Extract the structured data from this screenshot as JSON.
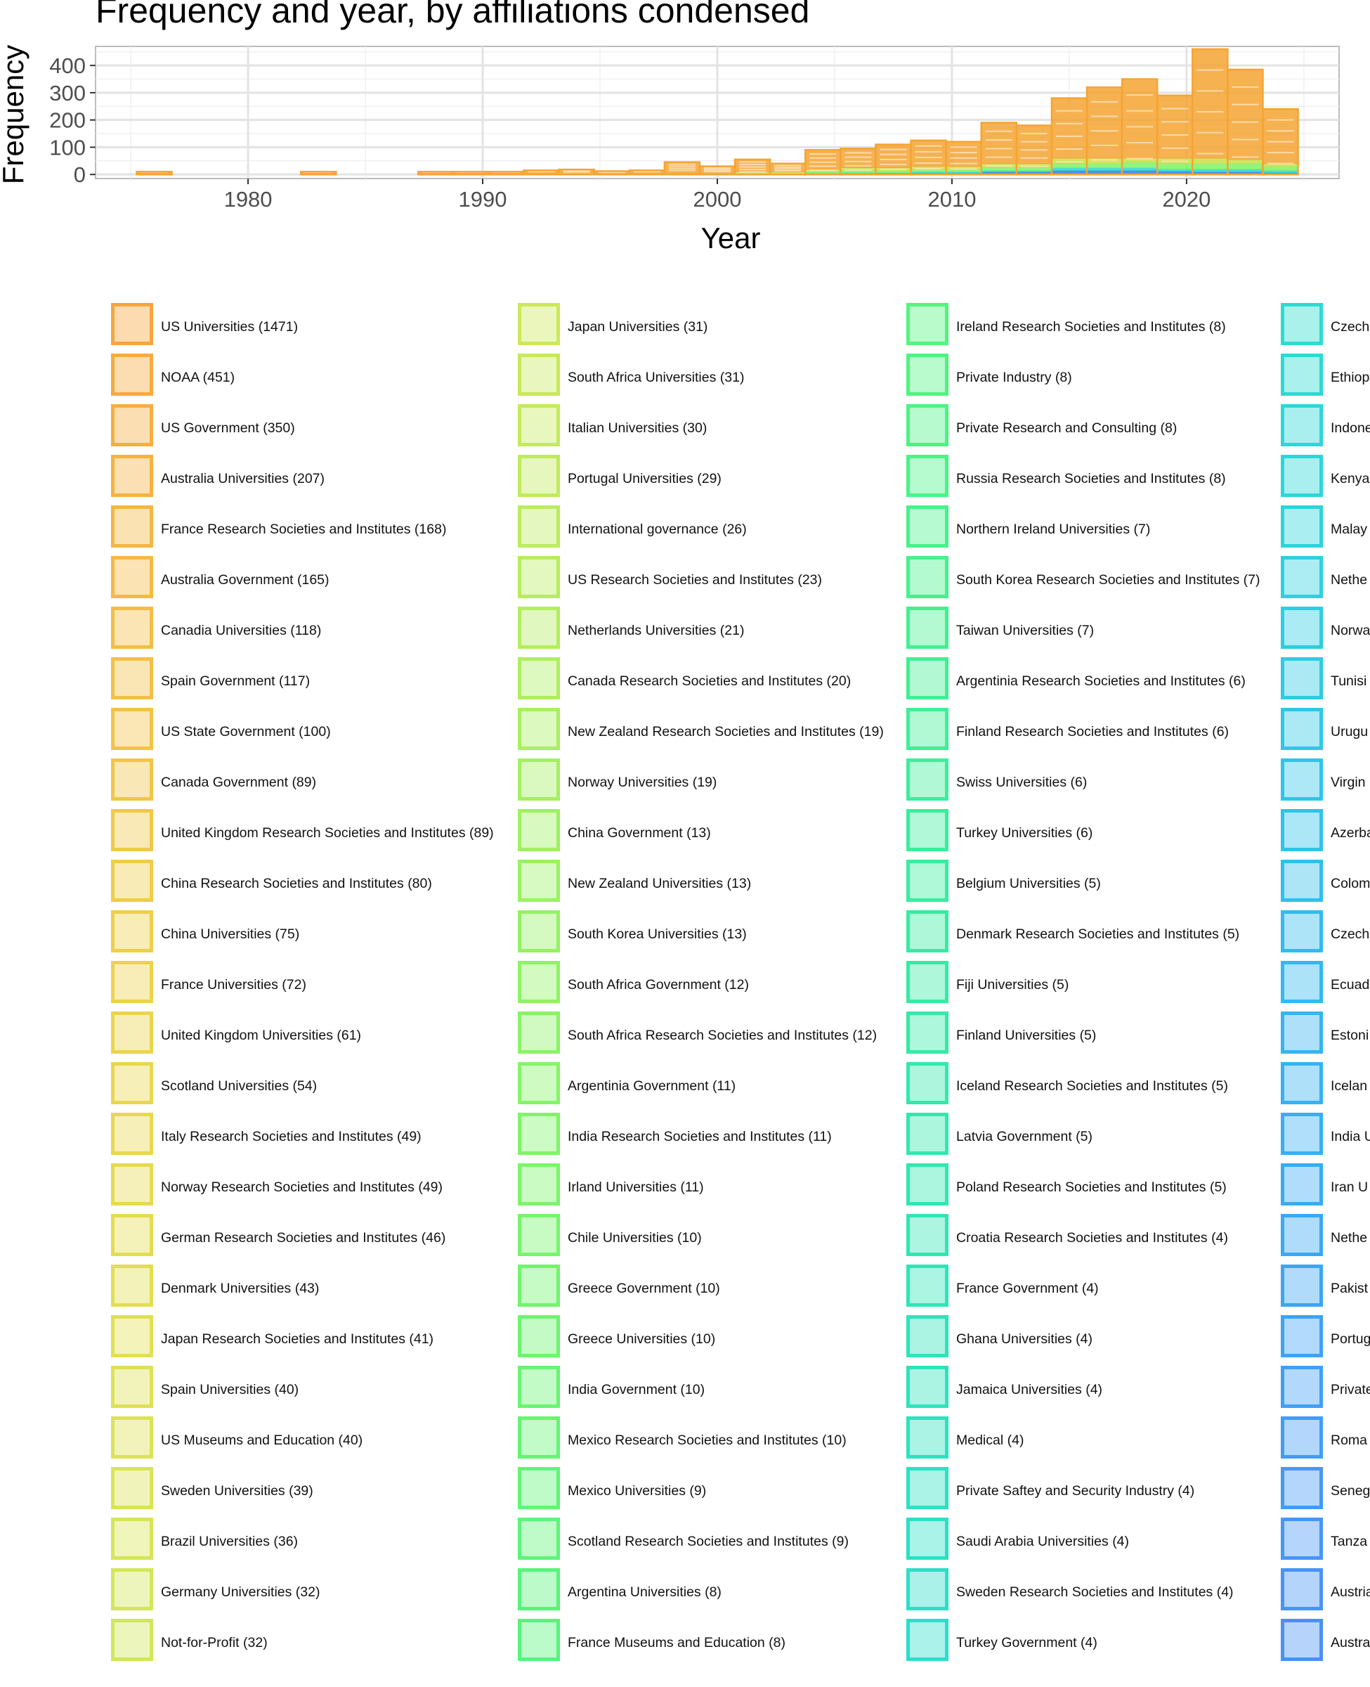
{
  "chart_data": {
    "type": "bar",
    "title": "Frequency and year, by affiliations condensed",
    "xlabel": "Year",
    "ylabel": "Frequency",
    "xlim": [
      1973.5,
      2026.5
    ],
    "ylim": [
      -15,
      470
    ],
    "xticks": [
      "1980",
      "1990",
      "2000",
      "2010",
      "2020"
    ],
    "yticks": [
      "0",
      "100",
      "200",
      "300",
      "400"
    ],
    "grid": true,
    "legend": "below",
    "stacked": true,
    "bin_width_years": 1.5,
    "years": [
      1976,
      1983,
      1988,
      1989.5,
      1991,
      1992.5,
      1994,
      1995.5,
      1997,
      1998.5,
      2000,
      2001.5,
      2003,
      2004.5,
      2006,
      2007.5,
      2009,
      2010.5,
      2012,
      2013.5,
      2015,
      2016.5,
      2018,
      2019.5,
      2021,
      2022.5,
      2024
    ],
    "totals": [
      10,
      10,
      10,
      10,
      10,
      15,
      18,
      12,
      15,
      45,
      30,
      55,
      40,
      90,
      95,
      110,
      125,
      120,
      190,
      180,
      280,
      320,
      350,
      290,
      460,
      385,
      240
    ],
    "series": [
      {
        "color": "#f5a432",
        "values": [
          10,
          10,
          10,
          10,
          10,
          10,
          12,
          10,
          10,
          40,
          25,
          45,
          30,
          70,
          70,
          85,
          95,
          90,
          150,
          140,
          220,
          260,
          290,
          230,
          400,
          330,
          200
        ]
      },
      {
        "color": "#c9e04a",
        "values": [
          0,
          0,
          0,
          0,
          0,
          5,
          6,
          2,
          5,
          5,
          5,
          8,
          7,
          10,
          10,
          10,
          12,
          12,
          15,
          15,
          20,
          20,
          15,
          20,
          20,
          15,
          10
        ]
      },
      {
        "color": "#7ff26a",
        "values": [
          0,
          0,
          0,
          0,
          0,
          0,
          0,
          0,
          0,
          0,
          0,
          2,
          3,
          5,
          8,
          8,
          8,
          8,
          10,
          10,
          15,
          15,
          20,
          20,
          20,
          20,
          15
        ]
      },
      {
        "color": "#2bd8d0",
        "values": [
          0,
          0,
          0,
          0,
          0,
          0,
          0,
          0,
          0,
          0,
          0,
          0,
          0,
          3,
          4,
          3,
          5,
          5,
          5,
          5,
          10,
          10,
          10,
          8,
          10,
          10,
          8
        ]
      },
      {
        "color": "#3b7ae0",
        "values": [
          0,
          0,
          0,
          0,
          0,
          0,
          0,
          0,
          0,
          0,
          0,
          0,
          0,
          2,
          3,
          4,
          5,
          5,
          10,
          10,
          15,
          15,
          15,
          12,
          10,
          10,
          7
        ]
      }
    ]
  },
  "legend": {
    "columns": [
      {
        "items": [
          {
            "label": "US Universities (1471)",
            "color": "#f7a53c"
          },
          {
            "label": "NOAA (451)",
            "color": "#f7aa3d"
          },
          {
            "label": "US Government (350)",
            "color": "#f6ae3f"
          },
          {
            "label": "Australia Universities (207)",
            "color": "#f6b240"
          },
          {
            "label": "France Research Societies and Institutes (168)",
            "color": "#f5b642"
          },
          {
            "label": "Australia Government (165)",
            "color": "#f5b943"
          },
          {
            "label": "Canadia Universities (118)",
            "color": "#f4bd44"
          },
          {
            "label": "Spain Government (117)",
            "color": "#f3c045"
          },
          {
            "label": "US State Government (100)",
            "color": "#f2c346"
          },
          {
            "label": "Canada Government (89)",
            "color": "#f1c647"
          },
          {
            "label": "United Kingdom Research Societies and Institutes (89)",
            "color": "#f0c948"
          },
          {
            "label": "China Research Societies and Institutes (80)",
            "color": "#efcc49"
          },
          {
            "label": "China Universities (75)",
            "color": "#eecf4a"
          },
          {
            "label": "France Universities (72)",
            "color": "#edd24b"
          },
          {
            "label": "United Kingdom Universities (61)",
            "color": "#ebd44c"
          },
          {
            "label": "Scotland Universities (54)",
            "color": "#ead64d"
          },
          {
            "label": "Italy Research Societies and Institutes (49)",
            "color": "#e8d84e"
          },
          {
            "label": "Norway Research Societies and Institutes (49)",
            "color": "#e6da4f"
          },
          {
            "label": "German Research Societies and Institutes (46)",
            "color": "#e4dc50"
          },
          {
            "label": "Denmark Universities (43)",
            "color": "#e2de51"
          },
          {
            "label": "Japan Research Societies and Institutes (41)",
            "color": "#e0e052"
          },
          {
            "label": "Spain Universities (40)",
            "color": "#dee153"
          },
          {
            "label": "US Museums and Education (40)",
            "color": "#dbe254"
          },
          {
            "label": "Sweden Universities (39)",
            "color": "#d9e455"
          },
          {
            "label": "Brazil Universities (36)",
            "color": "#d6e556"
          },
          {
            "label": "Germany Universities (32)",
            "color": "#d3e657"
          },
          {
            "label": "Not-for-Profit (32)",
            "color": "#d0e758"
          }
        ]
      },
      {
        "items": [
          {
            "label": "Japan Universities (31)",
            "color": "#cce858"
          },
          {
            "label": "South Africa Universities (31)",
            "color": "#c8e959"
          },
          {
            "label": "Italian Universities (30)",
            "color": "#c4ea5a"
          },
          {
            "label": "Portugal Universities (29)",
            "color": "#c0eb5b"
          },
          {
            "label": "International governance (26)",
            "color": "#bbec5c"
          },
          {
            "label": "US Research Societies and Institutes (23)",
            "color": "#b7ed5d"
          },
          {
            "label": "Netherlands Universities (21)",
            "color": "#b2ee5e"
          },
          {
            "label": "Canada Research Societies and Institutes (20)",
            "color": "#adef5f"
          },
          {
            "label": "New Zealand Research Societies and Institutes (19)",
            "color": "#a8f060"
          },
          {
            "label": "Norway Universities (19)",
            "color": "#a3f061"
          },
          {
            "label": "China Government (13)",
            "color": "#9ef162"
          },
          {
            "label": "New Zealand Universities (13)",
            "color": "#99f263"
          },
          {
            "label": "South Korea Universities (13)",
            "color": "#94f264"
          },
          {
            "label": "South Africa Government (12)",
            "color": "#8ff365"
          },
          {
            "label": "South Africa Research Societies and Institutes (12)",
            "color": "#8af366"
          },
          {
            "label": "Argentinia Government (11)",
            "color": "#85f467"
          },
          {
            "label": "India Research Societies and Institutes (11)",
            "color": "#80f468"
          },
          {
            "label": "Irland Universities (11)",
            "color": "#7bf56a"
          },
          {
            "label": "Chile Universities (10)",
            "color": "#76f56b"
          },
          {
            "label": "Greece Government (10)",
            "color": "#71f56d"
          },
          {
            "label": "Greece Universities (10)",
            "color": "#6cf56f"
          },
          {
            "label": "India Government (10)",
            "color": "#68f571"
          },
          {
            "label": "Mexico Research Societies and Institutes (10)",
            "color": "#64f573"
          },
          {
            "label": "Mexico Universities (9)",
            "color": "#60f575"
          },
          {
            "label": "Scotland Research Societies and Institutes (9)",
            "color": "#5cf577"
          },
          {
            "label": "Argentina Universities (8)",
            "color": "#58f479"
          },
          {
            "label": "France Museums and Education (8)",
            "color": "#55f47b"
          }
        ]
      },
      {
        "items": [
          {
            "label": "Ireland Research Societies and Institutes (8)",
            "color": "#52f47e"
          },
          {
            "label": "Private Industry (8)",
            "color": "#4ff480"
          },
          {
            "label": "Private Research and Consulting (8)",
            "color": "#4cf383"
          },
          {
            "label": "Russia Research Societies and Institutes (8)",
            "color": "#49f386"
          },
          {
            "label": "Northern Ireland Universities (7)",
            "color": "#46f289"
          },
          {
            "label": "South Korea Research Societies and Institutes (7)",
            "color": "#43f28c"
          },
          {
            "label": "Taiwan Universities (7)",
            "color": "#41f18f"
          },
          {
            "label": "Argentinia Research Societies and Institutes (6)",
            "color": "#3ff092"
          },
          {
            "label": "Finland Research Societies and Institutes (6)",
            "color": "#3df095"
          },
          {
            "label": "Swiss Universities (6)",
            "color": "#3bef98"
          },
          {
            "label": "Turkey Universities (6)",
            "color": "#39ee9b"
          },
          {
            "label": "Belgium Universities (5)",
            "color": "#37ed9e"
          },
          {
            "label": "Denmark Research Societies and Institutes (5)",
            "color": "#35eca1"
          },
          {
            "label": "Fiji Universities (5)",
            "color": "#34eba4"
          },
          {
            "label": "Finland Universities (5)",
            "color": "#33eaa7"
          },
          {
            "label": "Iceland Research Societies and Institutes (5)",
            "color": "#32e9aa"
          },
          {
            "label": "Latvia Government (5)",
            "color": "#31e8ad"
          },
          {
            "label": "Poland Research Societies and Institutes (5)",
            "color": "#30e7b0"
          },
          {
            "label": "Croatia Research Societies and Institutes (4)",
            "color": "#2fe6b3"
          },
          {
            "label": "France Government (4)",
            "color": "#2ee5b6"
          },
          {
            "label": "Ghana Universities (4)",
            "color": "#2de4b9"
          },
          {
            "label": "Jamaica Universities (4)",
            "color": "#2de3bc"
          },
          {
            "label": "Medical (4)",
            "color": "#2ce2bf"
          },
          {
            "label": "Private Saftey and Security Industry (4)",
            "color": "#2ce1c2"
          },
          {
            "label": "Saudi Arabia Universities (4)",
            "color": "#2be0c5"
          },
          {
            "label": "Sweden Research Societies and Institutes (4)",
            "color": "#2bdfc8"
          },
          {
            "label": "Turkey Government (4)",
            "color": "#2bdecb"
          }
        ]
      },
      {
        "items": [
          {
            "label": "Czech",
            "color": "#2bdcd0"
          },
          {
            "label": "Ethiop",
            "color": "#2bdad3"
          },
          {
            "label": "Indone",
            "color": "#2bd8d6"
          },
          {
            "label": "Kenya",
            "color": "#2bd6d9"
          },
          {
            "label": "Malay",
            "color": "#2bd4dc"
          },
          {
            "label": "Nethe",
            "color": "#2cd1df"
          },
          {
            "label": "Norwa",
            "color": "#2ccee2"
          },
          {
            "label": "Tunisi",
            "color": "#2dcbe4"
          },
          {
            "label": "Urugu",
            "color": "#2ec8e6"
          },
          {
            "label": "Virgin",
            "color": "#2fc5e8"
          },
          {
            "label": "Azerba",
            "color": "#30c2ea"
          },
          {
            "label": "Colom",
            "color": "#31bfec"
          },
          {
            "label": "Czech",
            "color": "#32bbee"
          },
          {
            "label": "Ecuad",
            "color": "#33b8f0"
          },
          {
            "label": "Estoni",
            "color": "#34b5f1"
          },
          {
            "label": "Icelan",
            "color": "#35b2f2"
          },
          {
            "label": "India U",
            "color": "#36aff3"
          },
          {
            "label": "Iran U",
            "color": "#38abf4"
          },
          {
            "label": "Nethe",
            "color": "#39a8f5"
          },
          {
            "label": "Pakist",
            "color": "#3ba5f6"
          },
          {
            "label": "Portug",
            "color": "#3da2f7"
          },
          {
            "label": "Private",
            "color": "#3f9ff7"
          },
          {
            "label": "Roma",
            "color": "#419cf8"
          },
          {
            "label": "Seneg",
            "color": "#4399f8"
          },
          {
            "label": "Tanza",
            "color": "#4596f8"
          },
          {
            "label": "Austria",
            "color": "#4793f8"
          },
          {
            "label": "Austra",
            "color": "#4990f8"
          }
        ]
      }
    ]
  }
}
